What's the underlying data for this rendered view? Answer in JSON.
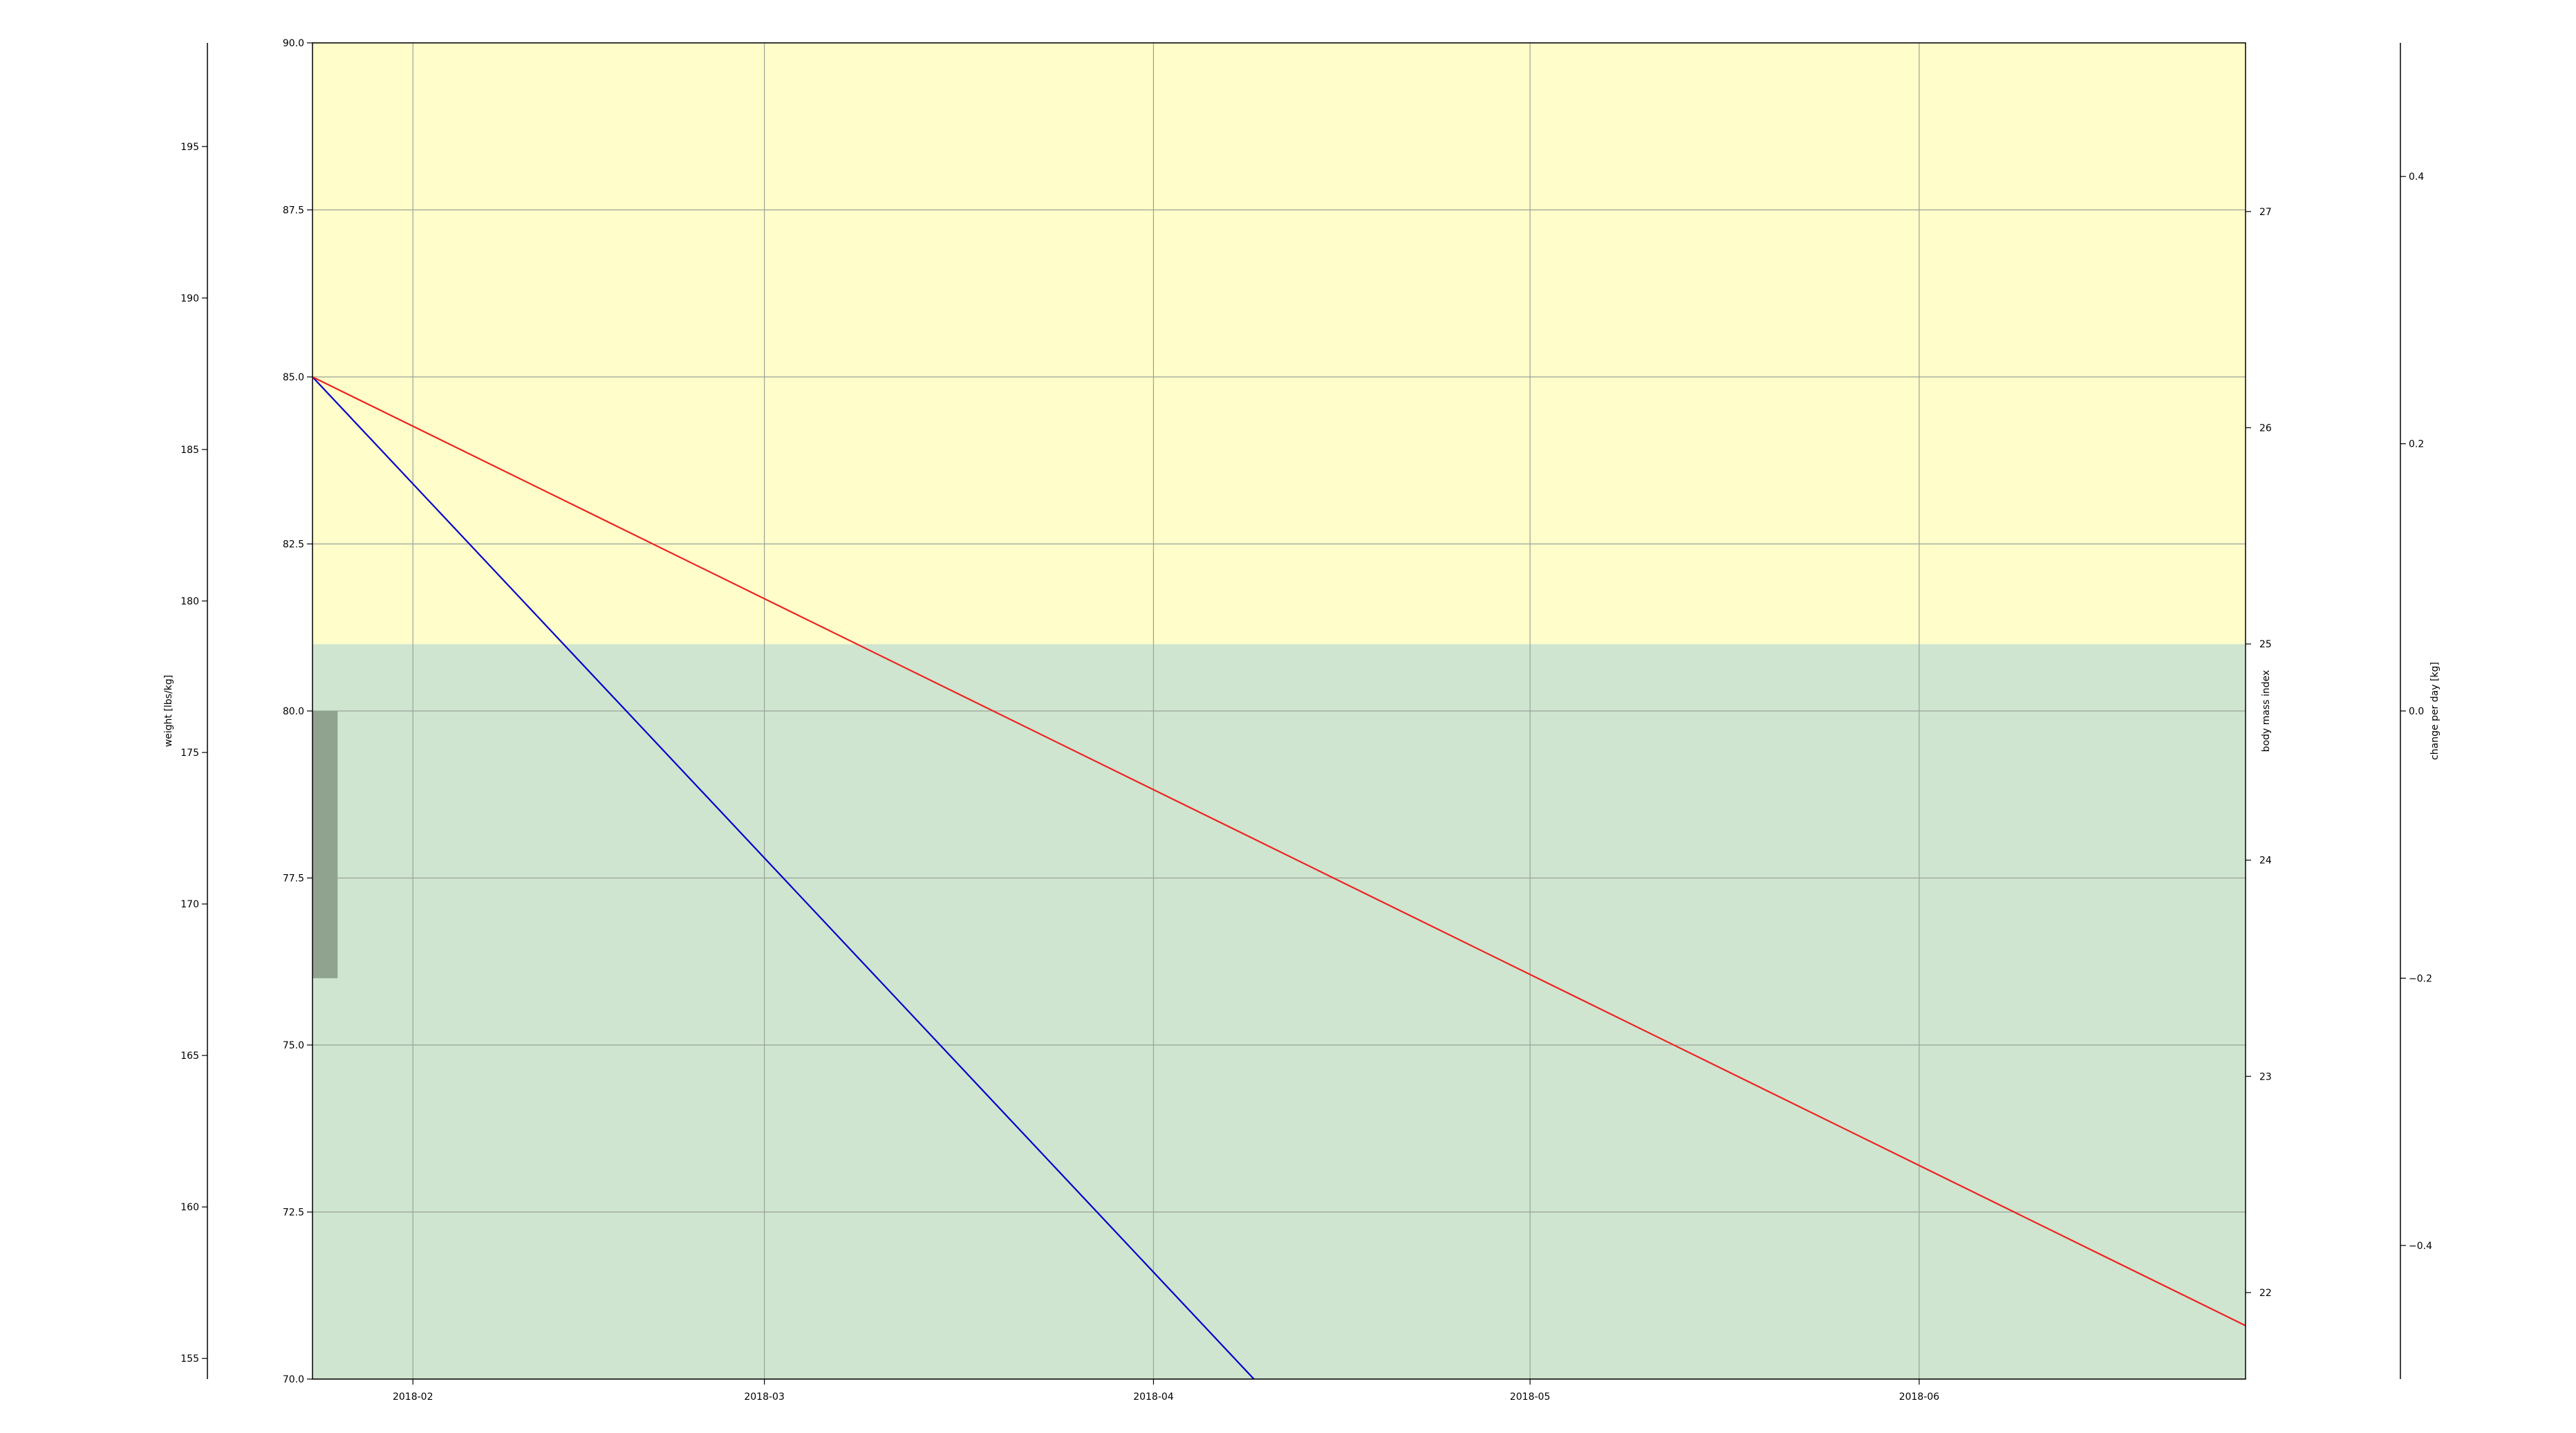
{
  "chart_data": {
    "type": "line",
    "x_axis": {
      "type": "date",
      "range": [
        "2018-01-24",
        "2018-06-27"
      ],
      "ticks": [
        "2018-02-01",
        "2018-03-01",
        "2018-04-01",
        "2018-05-01",
        "2018-06-01"
      ],
      "tick_labels": [
        "2018-02",
        "2018-03",
        "2018-04",
        "2018-05",
        "2018-06"
      ]
    },
    "y_axis_kg": {
      "range": [
        70.0,
        90.0
      ],
      "ticks": [
        70.0,
        72.5,
        75.0,
        77.5,
        80.0,
        82.5,
        85.0,
        87.5,
        90.0
      ],
      "tick_labels": [
        "70.0",
        "72.5",
        "75.0",
        "77.5",
        "80.0",
        "82.5",
        "85.0",
        "87.5",
        "90.0"
      ]
    },
    "y_axis_lbs": {
      "label": "weight [lbs/kg]",
      "range": [
        154.32,
        198.42
      ],
      "ticks": [
        155,
        160,
        165,
        170,
        175,
        180,
        185,
        190,
        195
      ],
      "tick_labels": [
        "155",
        "160",
        "165",
        "170",
        "175",
        "180",
        "185",
        "190",
        "195"
      ]
    },
    "y_axis_bmi": {
      "label": "body mass index",
      "range": [
        21.6,
        27.78
      ],
      "ticks": [
        22,
        23,
        24,
        25,
        26,
        27
      ],
      "tick_labels": [
        "22",
        "23",
        "24",
        "25",
        "26",
        "27"
      ]
    },
    "y_axis_change": {
      "label": "change per day [kg]",
      "range": [
        -0.5,
        0.5
      ],
      "ticks": [
        -0.4,
        -0.2,
        0.0,
        0.2,
        0.4
      ],
      "tick_labels": [
        "−0.4",
        "−0.2",
        "0.0",
        "0.2",
        "0.4"
      ]
    },
    "bands": [
      {
        "from_kg": 70.0,
        "to_kg": 81.0,
        "color": "#cfe5cf"
      },
      {
        "from_kg": 81.0,
        "to_kg": 90.0,
        "color": "#fffdc9"
      }
    ],
    "bars": [
      {
        "x_start": "2018-01-24",
        "x_end": "2018-01-26",
        "from_kg": 76.0,
        "to_kg": 80.0,
        "color": "#8fa38f"
      }
    ],
    "series": [
      {
        "color": "#0000cc",
        "x": [
          "2018-01-24",
          "2018-04-09"
        ],
        "y": [
          85.0,
          70.0
        ]
      },
      {
        "color": "#ee2222",
        "x": [
          "2018-01-24",
          "2018-06-27"
        ],
        "y": [
          85.0,
          70.8
        ]
      }
    ],
    "grid": true,
    "colors": {
      "grid": "#9aa39a",
      "axis": "#000000"
    }
  }
}
